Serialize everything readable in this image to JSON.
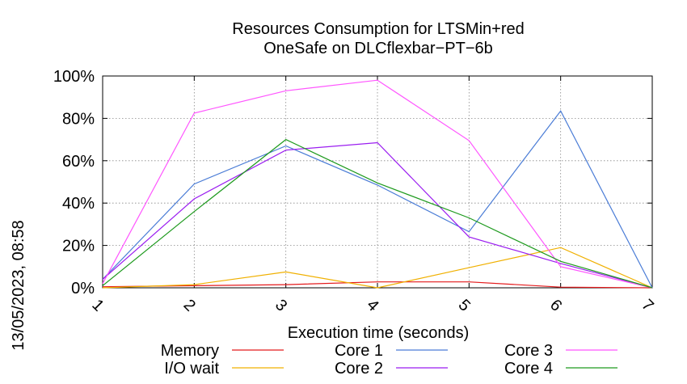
{
  "chart_data": {
    "type": "line",
    "title": [
      "Resources Consumption for LTSMin+red",
      "OneSafe on DLCflexbar−PT−6b"
    ],
    "xlabel": "Execution time (seconds)",
    "ylabel": "",
    "side_label": "13/05/2023, 08:58",
    "x": [
      1,
      2,
      3,
      4,
      5,
      6,
      7
    ],
    "x_ticks": [
      "1",
      "2",
      "3",
      "4",
      "5",
      "6",
      "7"
    ],
    "xlim": [
      1,
      7
    ],
    "y_ticks": [
      "0%",
      "20%",
      "40%",
      "60%",
      "80%",
      "100%"
    ],
    "ylim": [
      0,
      100
    ],
    "grid": true,
    "legend_position": "bottom",
    "series": [
      {
        "name": "Memory",
        "color": "#e41a1c",
        "values": [
          0.5,
          1,
          1.5,
          2.8,
          2.8,
          0.3,
          0
        ]
      },
      {
        "name": "I/O wait",
        "color": "#f0b000",
        "values": [
          0,
          1.5,
          7.5,
          0,
          9.5,
          19,
          0
        ]
      },
      {
        "name": "Core 1",
        "color": "#4a7cd6",
        "values": [
          4,
          49,
          67,
          48.5,
          26.5,
          83.5,
          0
        ]
      },
      {
        "name": "Core 2",
        "color": "#9a1cf0",
        "values": [
          4,
          42,
          65,
          68.5,
          24,
          11.5,
          0
        ]
      },
      {
        "name": "Core 3",
        "color": "#ff55ff",
        "values": [
          2,
          82.5,
          93,
          98,
          69.5,
          10,
          0
        ]
      },
      {
        "name": "Core 4",
        "color": "#1e9a1e",
        "values": [
          1,
          36,
          70,
          49.5,
          33,
          12.5,
          0
        ]
      }
    ]
  }
}
